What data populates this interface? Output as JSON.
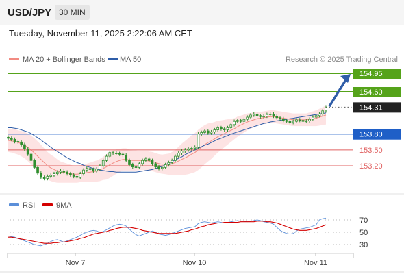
{
  "header": {
    "symbol": "USD/JPY",
    "timeframe": "30 MIN"
  },
  "datetime": "Tuesday, November 11, 2025 2:22:06 AM CET",
  "legend": {
    "ma_label": "MA 20 + Bollinger Bands",
    "ma50_label": "MA 50",
    "ma_color": "#f28b82",
    "ma50_color": "#2f5da8"
  },
  "credit": "Research © 2025 Trading Central",
  "rsi_legend": {
    "rsi_label": "RSI",
    "ma_label": "9MA",
    "rsi_color": "#5b8fd9",
    "ma_color": "#d40000"
  },
  "colors": {
    "resistance": "#55a31a",
    "pivot": "#1f5fc7",
    "support": "#e06060",
    "candle": "#2f8f2f",
    "arrow": "#2f5da8",
    "bollinger_fill": "#fde3e3"
  },
  "chart_data": [
    {
      "type": "candlestick",
      "title": "USD/JPY",
      "timeframe": "30 MIN",
      "x_ticks": [
        "Nov 7",
        "Nov 10",
        "Nov 11"
      ],
      "y_ticks": [],
      "ylim": [
        152.75,
        155.1
      ],
      "levels": [
        {
          "name": "resistance_2",
          "value": 154.95,
          "label": "154.95",
          "kind": "resistance"
        },
        {
          "name": "resistance_1",
          "value": 154.6,
          "label": "154.60",
          "kind": "resistance"
        },
        {
          "name": "last_price",
          "value": 154.31,
          "label": "154.31",
          "kind": "last"
        },
        {
          "name": "pivot",
          "value": 153.8,
          "label": "153.80",
          "kind": "pivot"
        },
        {
          "name": "support_1",
          "value": 153.5,
          "label": "153.50",
          "kind": "support"
        },
        {
          "name": "support_2",
          "value": 153.2,
          "label": "153.20",
          "kind": "support"
        }
      ],
      "close": [
        153.72,
        153.7,
        153.66,
        153.65,
        153.6,
        153.52,
        153.42,
        153.3,
        153.17,
        153.06,
        152.98,
        152.96,
        153.0,
        153.02,
        153.05,
        153.08,
        153.1,
        153.08,
        153.05,
        153.03,
        153.0,
        152.98,
        153.05,
        153.12,
        153.15,
        153.13,
        153.1,
        153.14,
        153.2,
        153.3,
        153.38,
        153.45,
        153.44,
        153.43,
        153.42,
        153.4,
        153.3,
        153.22,
        153.18,
        153.17,
        153.24,
        153.3,
        153.33,
        153.3,
        153.24,
        153.18,
        153.15,
        153.17,
        153.22,
        153.26,
        153.3,
        153.38,
        153.44,
        153.48,
        153.5,
        153.52,
        153.53,
        153.55,
        153.8,
        153.83,
        153.86,
        153.82,
        153.84,
        153.88,
        153.92,
        153.9,
        153.88,
        153.92,
        153.98,
        154.04,
        154.06,
        154.04,
        154.08,
        154.12,
        154.16,
        154.18,
        154.15,
        154.13,
        154.14,
        154.17,
        154.18,
        154.14,
        154.11,
        154.09,
        154.06,
        154.04,
        154.02,
        154.04,
        154.07,
        154.06,
        154.04,
        154.05,
        154.08,
        154.12,
        154.15,
        154.18,
        154.24,
        154.3
      ],
      "ma20": [
        153.68,
        153.67,
        153.66,
        153.64,
        153.62,
        153.59,
        153.55,
        153.5,
        153.44,
        153.38,
        153.32,
        153.26,
        153.2,
        153.16,
        153.13,
        153.1,
        153.08,
        153.07,
        153.06,
        153.05,
        153.04,
        153.04,
        153.05,
        153.06,
        153.07,
        153.08,
        153.09,
        153.1,
        153.12,
        153.15,
        153.18,
        153.22,
        153.25,
        153.28,
        153.3,
        153.32,
        153.32,
        153.31,
        153.3,
        153.3,
        153.3,
        153.3,
        153.3,
        153.29,
        153.28,
        153.26,
        153.24,
        153.23,
        153.23,
        153.23,
        153.24,
        153.26,
        153.29,
        153.32,
        153.35,
        153.38,
        153.42,
        153.45,
        153.5,
        153.55,
        153.6,
        153.64,
        153.67,
        153.71,
        153.75,
        153.78,
        153.81,
        153.84,
        153.87,
        153.9,
        153.94,
        153.97,
        154.0,
        154.03,
        154.05,
        154.07,
        154.09,
        154.1,
        154.11,
        154.12,
        154.13,
        154.13,
        154.12,
        154.11,
        154.1,
        154.09,
        154.08,
        154.07,
        154.07,
        154.07,
        154.07,
        154.07,
        154.08,
        154.09,
        154.1,
        154.12,
        154.14,
        154.16
      ],
      "ma50": [
        153.92,
        153.92,
        153.91,
        153.9,
        153.88,
        153.86,
        153.84,
        153.81,
        153.77,
        153.73,
        153.69,
        153.64,
        153.6,
        153.55,
        153.51,
        153.47,
        153.43,
        153.39,
        153.35,
        153.32,
        153.29,
        153.26,
        153.24,
        153.21,
        153.19,
        153.17,
        153.15,
        153.14,
        153.12,
        153.11,
        153.1,
        153.09,
        153.09,
        153.08,
        153.08,
        153.08,
        153.08,
        153.08,
        153.08,
        153.08,
        153.09,
        153.1,
        153.11,
        153.12,
        153.13,
        153.15,
        153.17,
        153.19,
        153.22,
        153.25,
        153.28,
        153.31,
        153.34,
        153.37,
        153.41,
        153.44,
        153.47,
        153.5,
        153.53,
        153.56,
        153.59,
        153.61,
        153.64,
        153.67,
        153.7,
        153.72,
        153.75,
        153.77,
        153.8,
        153.82,
        153.84,
        153.86,
        153.88,
        153.9,
        153.92,
        153.94,
        153.96,
        153.98,
        154.0,
        154.01,
        154.03,
        154.04,
        154.05,
        154.06,
        154.07,
        154.08,
        154.09,
        154.1,
        154.11,
        154.12,
        154.13,
        154.14,
        154.15,
        154.16,
        154.17,
        154.18,
        154.19,
        154.2
      ],
      "band_width": [
        0.22,
        0.22,
        0.23,
        0.23,
        0.24,
        0.25,
        0.26,
        0.27,
        0.28,
        0.28,
        0.28,
        0.27,
        0.26,
        0.25,
        0.24,
        0.22,
        0.2,
        0.19,
        0.18,
        0.17,
        0.16,
        0.16,
        0.16,
        0.16,
        0.17,
        0.18,
        0.19,
        0.2,
        0.21,
        0.22,
        0.24,
        0.25,
        0.24,
        0.23,
        0.22,
        0.21,
        0.21,
        0.2,
        0.19,
        0.19,
        0.18,
        0.18,
        0.18,
        0.18,
        0.18,
        0.18,
        0.18,
        0.18,
        0.19,
        0.2,
        0.22,
        0.24,
        0.27,
        0.3,
        0.32,
        0.34,
        0.36,
        0.37,
        0.38,
        0.38,
        0.37,
        0.36,
        0.34,
        0.32,
        0.3,
        0.28,
        0.26,
        0.24,
        0.22,
        0.2,
        0.19,
        0.18,
        0.17,
        0.16,
        0.15,
        0.14,
        0.13,
        0.12,
        0.12,
        0.12,
        0.12,
        0.12,
        0.12,
        0.12,
        0.12,
        0.12,
        0.12,
        0.12,
        0.12,
        0.12,
        0.12,
        0.12,
        0.13,
        0.14,
        0.15,
        0.16,
        0.17,
        0.18
      ],
      "forecast_target": 154.95
    },
    {
      "type": "line",
      "title": "RSI",
      "y_ticks": [
        70,
        50,
        30
      ],
      "ylim": [
        14,
        86
      ],
      "series": [
        {
          "name": "RSI",
          "values": [
            44,
            43,
            42,
            40,
            38,
            36,
            34,
            32,
            30,
            29,
            28,
            30,
            32,
            35,
            37,
            38,
            36,
            34,
            36,
            38,
            40,
            42,
            45,
            48,
            50,
            52,
            53,
            52,
            50,
            51,
            54,
            57,
            60,
            62,
            63,
            62,
            60,
            55,
            50,
            46,
            44,
            46,
            48,
            50,
            52,
            50,
            47,
            46,
            45,
            46,
            48,
            50,
            52,
            54,
            56,
            57,
            58,
            59,
            64,
            66,
            67,
            66,
            65,
            66,
            67,
            66,
            65,
            66,
            67,
            68,
            69,
            68,
            68,
            67,
            68,
            69,
            70,
            69,
            67,
            66,
            65,
            63,
            58,
            53,
            50,
            48,
            47,
            48,
            52,
            55,
            56,
            57,
            58,
            60,
            62,
            70,
            72,
            73
          ]
        },
        {
          "name": "9MA",
          "values": [
            42,
            42,
            41,
            40,
            39,
            38,
            37,
            36,
            35,
            34,
            33,
            32,
            32,
            32,
            33,
            33,
            34,
            34,
            35,
            36,
            37,
            38,
            40,
            41,
            43,
            45,
            47,
            48,
            49,
            50,
            51,
            53,
            54,
            56,
            57,
            58,
            58,
            58,
            57,
            56,
            55,
            53,
            52,
            51,
            50,
            49,
            48,
            48,
            48,
            48,
            48,
            48,
            49,
            50,
            51,
            52,
            54,
            55,
            57,
            59,
            60,
            62,
            63,
            64,
            65,
            65,
            66,
            66,
            66,
            66,
            66,
            67,
            67,
            67,
            67,
            67,
            68,
            68,
            68,
            67,
            67,
            66,
            65,
            63,
            61,
            59,
            57,
            55,
            54,
            53,
            53,
            53,
            54,
            55,
            56,
            58,
            60,
            62
          ]
        }
      ]
    }
  ]
}
